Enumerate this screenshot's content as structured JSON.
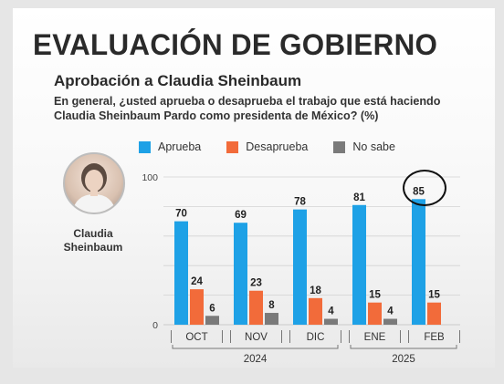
{
  "header": {
    "title": "EVALUACIÓN DE GOBIERNO",
    "subtitle": "Aprobación a Claudia Sheinbaum",
    "question": "En general, ¿usted aprueba o desaprueba el trabajo que está haciendo Claudia Sheinbaum Pardo como presidenta de México? (%)"
  },
  "person": {
    "name_line1": "Claudia",
    "name_line2": "Sheinbaum",
    "photo_icon": "portrait-photo"
  },
  "colors": {
    "aprueba": "#1ea1e6",
    "desaprueba": "#f26b3a",
    "nosabe": "#7a7a7a",
    "grid": "#d3d3d3"
  },
  "legend": [
    {
      "label": "Aprueba",
      "color": "#1ea1e6"
    },
    {
      "label": "Desaprueba",
      "color": "#f26b3a"
    },
    {
      "label": "No sabe",
      "color": "#7a7a7a"
    }
  ],
  "chart_data": {
    "type": "bar",
    "categories": [
      "OCT",
      "NOV",
      "DIC",
      "ENE",
      "FEB"
    ],
    "year_groups": [
      {
        "label": "2024",
        "categories": [
          "OCT",
          "NOV",
          "DIC"
        ]
      },
      {
        "label": "2025",
        "categories": [
          "ENE",
          "FEB"
        ]
      }
    ],
    "series": [
      {
        "name": "Aprueba",
        "values": [
          70,
          69,
          78,
          81,
          85
        ]
      },
      {
        "name": "Desaprueba",
        "values": [
          24,
          23,
          18,
          15,
          15
        ]
      },
      {
        "name": "No sabe",
        "values": [
          6,
          8,
          4,
          4,
          null
        ]
      }
    ],
    "yticks": [
      0,
      100
    ],
    "ylim": [
      0,
      100
    ],
    "grid": true,
    "legend_position": "top",
    "highlight": {
      "category": "FEB",
      "series": "Aprueba"
    }
  }
}
